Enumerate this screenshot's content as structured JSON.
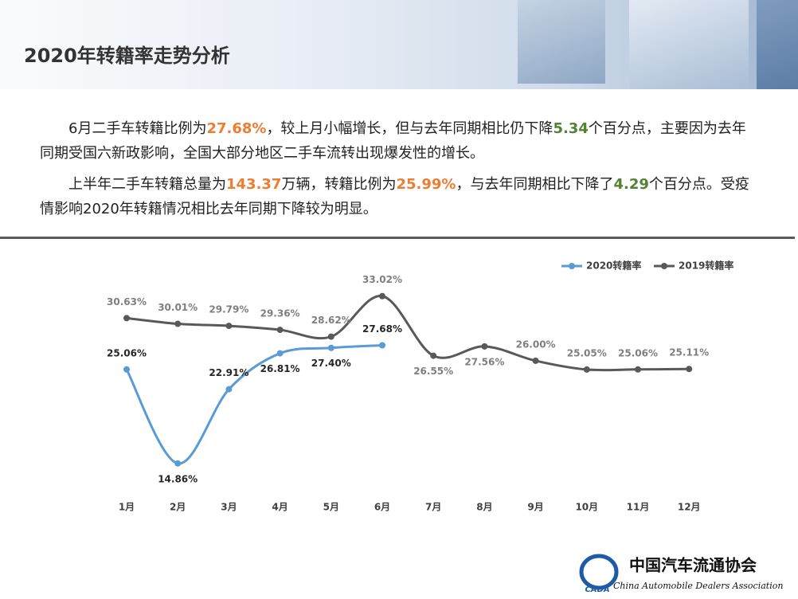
{
  "header": {
    "title": "2020年转籍率走势分析"
  },
  "paragraphs": [
    [
      {
        "text": "6月二手车转籍比例为"
      },
      {
        "text": "27.68%",
        "color": "#ed7d31"
      },
      {
        "text": "，较上月小幅增长，但与去年同期相比仍下降"
      },
      {
        "text": "5.34",
        "color": "#548235"
      },
      {
        "text": "个百分点，主要因为去年同期受国六新政影响，全国大部分地区二手车流转出现爆发性的增长。"
      }
    ],
    [
      {
        "text": "上半年二手车转籍总量为"
      },
      {
        "text": "143.37",
        "color": "#ed7d31"
      },
      {
        "text": "万辆，转籍比例为"
      },
      {
        "text": "25.99%",
        "color": "#ed7d31"
      },
      {
        "text": "，与去年同期相比下降了"
      },
      {
        "text": "4.29",
        "color": "#548235"
      },
      {
        "text": "个百分点。受疫情影响2020年转籍情况相比去年同期下降较为明显。"
      }
    ]
  ],
  "chart_data": {
    "type": "line",
    "categories": [
      "1月",
      "2月",
      "3月",
      "4月",
      "5月",
      "6月",
      "7月",
      "8月",
      "9月",
      "10月",
      "11月",
      "12月"
    ],
    "series": [
      {
        "name": "2020转籍率",
        "color": "#5b9bd5",
        "values": [
          25.06,
          14.86,
          22.91,
          26.81,
          27.4,
          27.68,
          null,
          null,
          null,
          null,
          null,
          null
        ],
        "value_labels": [
          "25.06%",
          "14.86%",
          "22.91%",
          "26.81%",
          "27.40%",
          "27.68%",
          null,
          null,
          null,
          null,
          null,
          null
        ]
      },
      {
        "name": "2019转籍率",
        "color": "#595959",
        "values": [
          30.63,
          30.01,
          29.79,
          29.36,
          28.62,
          33.02,
          26.55,
          27.56,
          26.0,
          25.05,
          25.06,
          25.11
        ],
        "value_labels": [
          "30.63%",
          "30.01%",
          "29.79%",
          "29.36%",
          "28.62%",
          "33.02%",
          "26.55%",
          "27.56%",
          "26.00%",
          "25.05%",
          "25.06%",
          "25.11%"
        ]
      }
    ],
    "ylim": [
      10,
      40
    ],
    "smooth": true,
    "legend": "top-right"
  },
  "logo": {
    "name": "中国汽车流通协会",
    "abbr": "CADA",
    "english": "China Automobile Dealers Association"
  }
}
